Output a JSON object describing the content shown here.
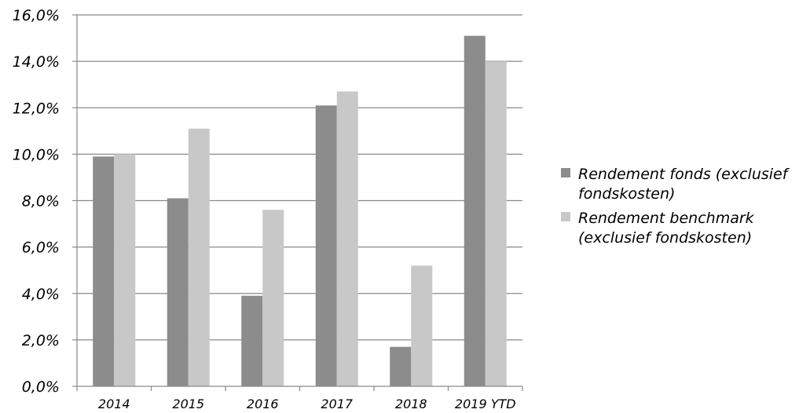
{
  "chart_data": {
    "type": "bar",
    "categories": [
      "2014",
      "2015",
      "2016",
      "2017",
      "2018",
      "2019 YTD"
    ],
    "series": [
      {
        "name": "Rendement fonds (exclusief fondskosten)",
        "color": "#8c8c8c",
        "values": [
          9.9,
          8.1,
          3.9,
          12.1,
          1.7,
          15.1
        ]
      },
      {
        "name": "Rendement benchmark (exclusief fondskosten)",
        "color": "#c8c8c8",
        "values": [
          10.0,
          11.1,
          7.6,
          12.7,
          5.2,
          14.0
        ]
      }
    ],
    "y_ticks": [
      "0,0%",
      "2,0%",
      "4,0%",
      "6,0%",
      "8,0%",
      "10,0%",
      "12,0%",
      "14,0%",
      "16,0%"
    ],
    "ylim": [
      0,
      16
    ],
    "grid": true,
    "legend_position": "right"
  }
}
